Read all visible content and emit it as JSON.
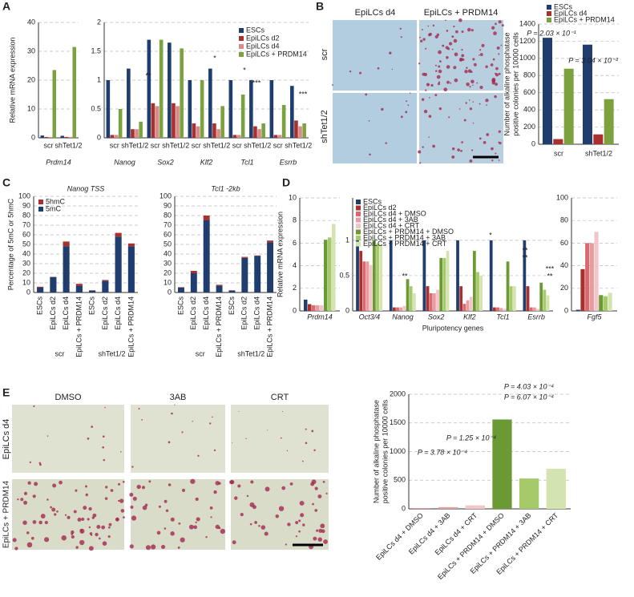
{
  "figure": {
    "panel_labels": [
      "A",
      "B",
      "C",
      "D",
      "E"
    ],
    "B_columns": [
      "EpiLCs d4",
      "EpiLCs + PRDM14"
    ],
    "B_rows": [
      "scr",
      "shTet1/2"
    ],
    "E_columns": [
      "DMSO",
      "3AB",
      "CRT"
    ],
    "E_rows": [
      "EpiLCs d4",
      "EpiLCs + PRDM14"
    ]
  },
  "chart_data": [
    {
      "type": "bar",
      "categories": [
        "scr",
        "shTet1/2"
      ],
      "groups": [
        "Prdm14"
      ],
      "y_label": "Relative mRNA expression",
      "series": [
        {
          "color": "#1f3d6e",
          "values": [
            0.8,
            0.7
          ]
        },
        {
          "color": "#a8312f",
          "values": [
            0.3,
            0.3
          ]
        },
        {
          "color": "#d98a8a",
          "values": [
            0.3,
            0.3
          ]
        },
        {
          "color": "#7ba23f",
          "values": [
            23.5,
            31.5
          ]
        }
      ],
      "ylim": [
        0,
        40
      ],
      "yticks": [
        0,
        10,
        20,
        30,
        40
      ],
      "grid": true
    },
    {
      "type": "bar",
      "categories": [
        "scr",
        "shTet1/2",
        "scr",
        "shTet1/2",
        "scr",
        "shTet1/2",
        "scr",
        "shTet1/2",
        "scr",
        "shTet1/2"
      ],
      "groups": [
        "Nanog",
        "Sox2",
        "Klf2",
        "Tcl1",
        "Esrrb"
      ],
      "series": [
        {
          "name": "ESCs",
          "color": "#1f3d6e",
          "values": [
            1.0,
            1.2,
            1.7,
            1.65,
            1.0,
            1.2,
            1.0,
            1.0,
            1.0,
            0.9
          ]
        },
        {
          "name": "EpiLCs d2",
          "color": "#a8312f",
          "values": [
            0.05,
            0.15,
            0.6,
            0.6,
            0.25,
            0.25,
            0.05,
            0.2,
            0.05,
            0.3
          ]
        },
        {
          "name": "EpiLCs d4",
          "color": "#d98a8a",
          "values": [
            0.05,
            0.15,
            0.55,
            0.55,
            0.2,
            0.15,
            0.05,
            0.15,
            0.05,
            0.2
          ]
        },
        {
          "name": "EpiLCs + PRDM14",
          "color": "#7ba23f",
          "values": [
            0.5,
            0.28,
            1.7,
            1.55,
            1.0,
            0.55,
            0.75,
            0.25,
            0.57,
            0.25
          ]
        }
      ],
      "ylim": [
        0,
        2
      ],
      "yticks": [
        0,
        0.5,
        1,
        1.5,
        2
      ],
      "grid": true,
      "annotations": [
        "**",
        "*",
        "*",
        "***",
        "***"
      ]
    },
    {
      "type": "bar",
      "categories": [
        "scr",
        "shTet1/2"
      ],
      "y_label": [
        "Number of alkaline phosphatase",
        "positive colonies per 10000 cells"
      ],
      "series": [
        {
          "name": "ESCs",
          "color": "#1f3d6e",
          "values": [
            1240,
            1160
          ]
        },
        {
          "name": "EpiLCs d4",
          "color": "#a8312f",
          "values": [
            60,
            115
          ]
        },
        {
          "name": "EpiLCs + PRDM14",
          "color": "#7ba23f",
          "values": [
            880,
            525
          ]
        }
      ],
      "ylim": [
        0,
        1400
      ],
      "yticks": [
        0,
        200,
        400,
        600,
        800,
        1000,
        1200,
        1400
      ],
      "grid": true,
      "annotations": [
        "P = 2.03 × 10⁻¹",
        "P = 3.04 × 10⁻³"
      ]
    },
    {
      "type": "stacked_bar",
      "title": "Nanog TSS",
      "categories": [
        "ESCs",
        "EpiLCs d2",
        "EpiLCs d4",
        "EpiLCs + PRDM14",
        "ESCs",
        "EpiLCs d2",
        "EpiLCs d4",
        "EpiLCs + PRDM14"
      ],
      "groups": [
        "scr",
        "shTet1/2"
      ],
      "y_label": "Percentage of 5mC or 5hmC",
      "series": [
        {
          "name": "5mC",
          "color": "#1f3d6e",
          "values": [
            5,
            16,
            48,
            7,
            2,
            12,
            58,
            48
          ]
        },
        {
          "name": "5hmC",
          "color": "#a8312f",
          "values": [
            1,
            0.3,
            5,
            2,
            0.3,
            1,
            4,
            3
          ]
        }
      ],
      "ylim": [
        0,
        100
      ],
      "yticks": [
        0,
        10,
        20,
        30,
        40,
        50,
        60,
        70,
        80,
        90,
        100
      ],
      "grid": true
    },
    {
      "type": "stacked_bar",
      "title": "Tcl1 -2kb",
      "categories": [
        "ESCs",
        "EpiLCs d2",
        "EpiLCs d4",
        "EpiLCs + PRDM14",
        "ESCs",
        "EpiLCs d2",
        "EpiLCs d4",
        "EpiLCs + PRDM14"
      ],
      "groups": [
        "scr",
        "shTet1/2"
      ],
      "series": [
        {
          "color": "#1f3d6e",
          "values": [
            5,
            20,
            75,
            7,
            2,
            36,
            38,
            52
          ]
        },
        {
          "color": "#a8312f",
          "values": [
            0.5,
            2.5,
            5,
            1,
            0.3,
            1,
            0.5,
            2
          ]
        }
      ],
      "ylim": [
        0,
        100
      ],
      "yticks": [
        0,
        10,
        20,
        30,
        40,
        50,
        60,
        70,
        80,
        90,
        100
      ],
      "grid": true
    },
    {
      "type": "bar",
      "categories": [
        "Prdm14"
      ],
      "y_label": "Relative mRNA expression",
      "series": [
        {
          "color": "#1f3d6e",
          "values": [
            1
          ]
        },
        {
          "color": "#a8312f",
          "values": [
            0.6
          ]
        },
        {
          "color": "#d9696f",
          "values": [
            0.5
          ]
        },
        {
          "color": "#e89ca0",
          "values": [
            0.5
          ]
        },
        {
          "color": "#f2c5c8",
          "values": [
            0.5
          ]
        },
        {
          "color": "#6b9a35",
          "values": [
            6.3
          ]
        },
        {
          "color": "#a6c96a",
          "values": [
            6.5
          ]
        },
        {
          "color": "#d3e4b0",
          "values": [
            7.7
          ]
        }
      ],
      "ylim": [
        0,
        10
      ],
      "yticks": [
        0,
        2,
        4,
        6,
        8,
        10
      ],
      "grid": true
    },
    {
      "type": "bar",
      "categories": [
        "Oct3/4",
        "Nanog",
        "Sox2",
        "Klf2",
        "Tcl1",
        "Esrrb"
      ],
      "x_label": "Pluripotency genes",
      "series": [
        {
          "name": "ESCs",
          "color": "#1f3d6e",
          "values": [
            1,
            1,
            1,
            1,
            1,
            1
          ]
        },
        {
          "name": "EpiLCs d2",
          "color": "#a8312f",
          "values": [
            0.85,
            0.05,
            0.35,
            0.35,
            0.05,
            0.35
          ]
        },
        {
          "name": "EpiLCs d4 + DMSO",
          "color": "#d9696f",
          "values": [
            0.7,
            0.05,
            0.25,
            0.1,
            0.05,
            0.05
          ]
        },
        {
          "name": "EpiLCs d4 + 3AB",
          "color": "#e89ca0",
          "values": [
            0.7,
            0.05,
            0.25,
            0.15,
            0.04,
            0.05
          ]
        },
        {
          "name": "EpiLCs d4 + CRT",
          "color": "#f2c5c8",
          "values": [
            0.65,
            0.07,
            0.3,
            0.2,
            0.03,
            0.03
          ]
        },
        {
          "name": "EpiLCs + PRDM14 + DMSO",
          "color": "#6b9a35",
          "values": [
            1.0,
            0.45,
            0.75,
            0.85,
            0.7,
            0.4
          ]
        },
        {
          "name": "EpiLCs + PRDM14 + 3AB",
          "color": "#a6c96a",
          "values": [
            0.95,
            0.35,
            0.75,
            0.55,
            0.35,
            0.3
          ]
        },
        {
          "name": "EpiLCs + PRDM14 + CRT",
          "color": "#d3e4b0",
          "values": [
            0.95,
            0.25,
            0.85,
            0.5,
            0.35,
            0.22
          ]
        }
      ],
      "ylim": [
        0,
        1.6
      ],
      "yticks": [
        0,
        0.5,
        1
      ],
      "grid": true,
      "annotations": [
        "**",
        "*",
        "**",
        "**",
        "***",
        "**"
      ]
    },
    {
      "type": "bar",
      "categories": [
        "Fgf5"
      ],
      "series": [
        {
          "color": "#1f3d6e",
          "values": [
            1
          ]
        },
        {
          "color": "#a8312f",
          "values": [
            37
          ]
        },
        {
          "color": "#d9696f",
          "values": [
            60
          ]
        },
        {
          "color": "#e89ca0",
          "values": [
            60
          ]
        },
        {
          "color": "#f2c5c8",
          "values": [
            70
          ]
        },
        {
          "color": "#6b9a35",
          "values": [
            14
          ]
        },
        {
          "color": "#a6c96a",
          "values": [
            13
          ]
        },
        {
          "color": "#d3e4b0",
          "values": [
            16
          ]
        }
      ],
      "ylim": [
        0,
        100
      ],
      "yticks": [
        0,
        20,
        40,
        60,
        80,
        100
      ],
      "grid": true
    },
    {
      "type": "bar",
      "categories": [
        "EpiLCs d4 + DMSO",
        "EpiLCs d4 + 3AB",
        "EpiLCs d4 + CRT",
        "EpiLCs + PRDM14 + DMSO",
        "EpiLCs + PRDM14 + 3AB",
        "EpiLCs + PRDM14 + CRT"
      ],
      "values": [
        10,
        30,
        60,
        1560,
        530,
        700
      ],
      "colors": [
        "#d9696f",
        "#e89ca0",
        "#f2c5c8",
        "#6b9a35",
        "#a6c96a",
        "#d3e4b0"
      ],
      "y_label": [
        "Number of alkaline phosphatase",
        "positive colonies per 10000 cells"
      ],
      "ylim": [
        0,
        2000
      ],
      "yticks": [
        0,
        500,
        1000,
        1500,
        2000
      ],
      "grid": true,
      "annotations": [
        "P = 4.03 × 10⁻⁴",
        "P = 6.07 × 10⁻⁴",
        "P = 1.25 × 10⁻⁴",
        "P = 3.78 × 10⁻⁴"
      ]
    }
  ]
}
